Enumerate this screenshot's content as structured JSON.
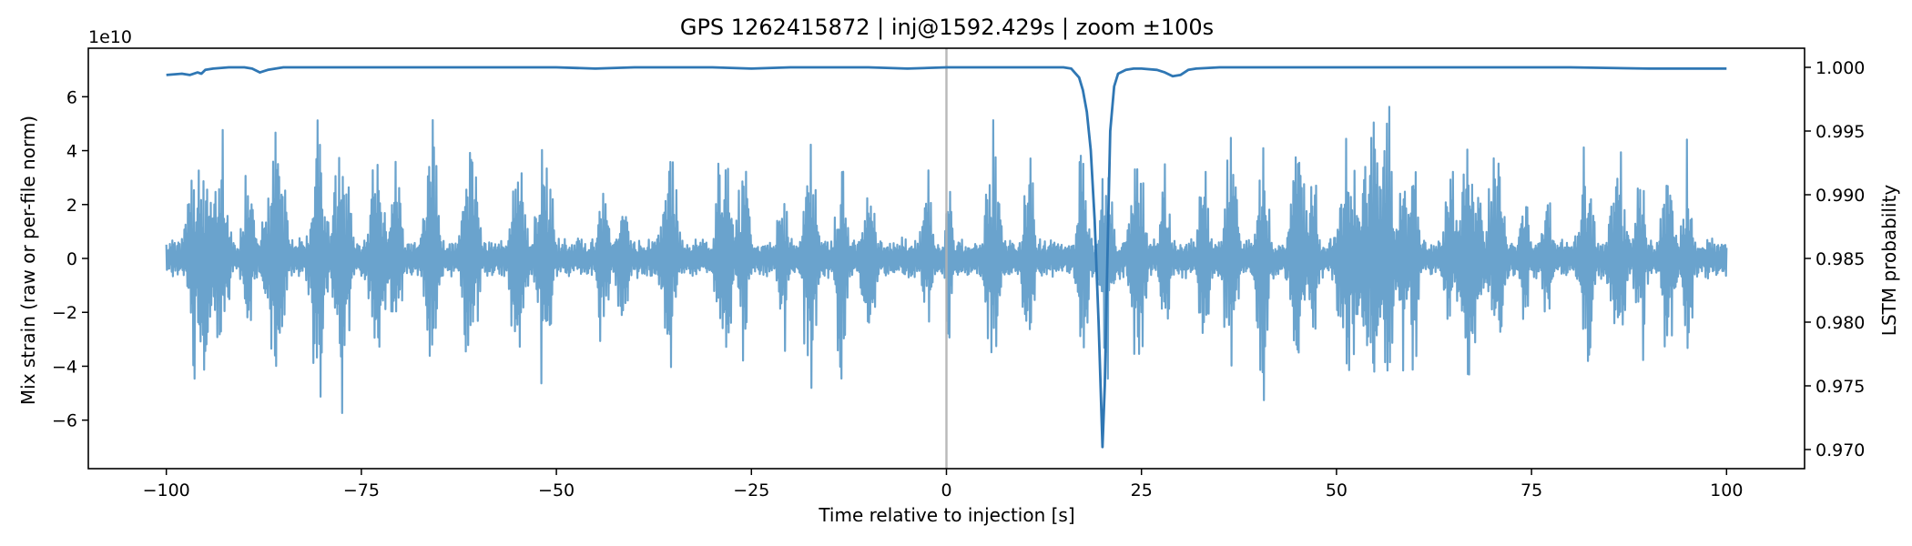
{
  "chart_data": {
    "type": "line",
    "title": "GPS 1262415872 | inj@1592.429s | zoom ±100s",
    "xlabel": "Time relative to injection [s]",
    "ylabel_left": "Mix strain (raw or per-file norm)",
    "ylabel_right": "LSTM probability",
    "left_axis_offset_label": "1e10",
    "xlim": [
      -110,
      110
    ],
    "ylim_left": [
      -7.8,
      7.8
    ],
    "ylim_right": [
      0.9685,
      1.0015
    ],
    "x_ticks": [
      -100,
      -75,
      -50,
      -25,
      0,
      25,
      50,
      75,
      100
    ],
    "x_tick_labels": [
      "−100",
      "−75",
      "−50",
      "−25",
      "0",
      "25",
      "50",
      "75",
      "100"
    ],
    "y_ticks_left": [
      -6,
      -4,
      -2,
      0,
      2,
      4,
      6
    ],
    "y_tick_labels_left": [
      "−6",
      "−4",
      "−2",
      "0",
      "2",
      "4",
      "6"
    ],
    "y_ticks_right": [
      0.97,
      0.975,
      0.98,
      0.985,
      0.99,
      0.995,
      1.0
    ],
    "y_tick_labels_right": [
      "0.970",
      "0.975",
      "0.980",
      "0.985",
      "0.990",
      "0.995",
      "1.000"
    ],
    "injection_marker_x": 0,
    "grid": false,
    "colors": {
      "strain": "#6aa3cd",
      "probability": "#2f77b4",
      "injection_line": "#b3b3b3",
      "axes": "#000000"
    },
    "series": [
      {
        "axis": "right",
        "x": [
          -100,
          -98,
          -97,
          -96,
          -95.5,
          -95,
          -94,
          -92,
          -90,
          -89,
          -88,
          -87,
          -86,
          -85,
          -80,
          -70,
          -60,
          -50,
          -45,
          -40,
          -30,
          -25,
          -20,
          -10,
          -5,
          0,
          5,
          10,
          15,
          16,
          17,
          17.5,
          18,
          18.5,
          19,
          19.5,
          20,
          20.3,
          20.7,
          21,
          21.5,
          22,
          23,
          24,
          25,
          27,
          28,
          29,
          30,
          31,
          32,
          35,
          40,
          45,
          50,
          60,
          70,
          80,
          90,
          95,
          100
        ],
        "values": [
          0.9994,
          0.9995,
          0.9994,
          0.9996,
          0.9995,
          0.9998,
          0.9999,
          1.0,
          1.0,
          0.9999,
          0.9996,
          0.9998,
          0.9999,
          1.0,
          1.0,
          1.0,
          1.0,
          1.0,
          0.9999,
          1.0,
          1.0,
          0.9999,
          1.0,
          1.0,
          0.9999,
          1.0,
          1.0,
          1.0,
          1.0,
          0.9999,
          0.9992,
          0.9982,
          0.9965,
          0.9935,
          0.988,
          0.98,
          0.9702,
          0.975,
          0.987,
          0.995,
          0.9985,
          0.9995,
          0.9998,
          0.9999,
          0.9999,
          0.9998,
          0.9996,
          0.9993,
          0.9994,
          0.9998,
          0.9999,
          1.0,
          1.0,
          1.0,
          1.0,
          1.0,
          1.0,
          1.0,
          0.9999,
          0.9999,
          0.9999
        ]
      },
      {
        "axis": "left",
        "x_range": [
          -100,
          100
        ],
        "baseline_abs": 0.8,
        "bursts": [
          {
            "center": -95.5,
            "width": 2.5,
            "peak": 6.2
          },
          {
            "center": -93,
            "width": 1.6,
            "peak": 5.8
          },
          {
            "center": -89.5,
            "width": 1.2,
            "peak": 4.3
          },
          {
            "center": -86,
            "width": 2.4,
            "peak": 5.4
          },
          {
            "center": -80.5,
            "width": 1.6,
            "peak": 6.4
          },
          {
            "center": -77.5,
            "width": 1.6,
            "peak": 6.1
          },
          {
            "center": -73,
            "width": 1.6,
            "peak": 5.8
          },
          {
            "center": -70.5,
            "width": 1.2,
            "peak": 4.6
          },
          {
            "center": -66,
            "width": 1.4,
            "peak": 6.5
          },
          {
            "center": -61,
            "width": 1.6,
            "peak": 5.6
          },
          {
            "center": -55,
            "width": 1.6,
            "peak": 5.2
          },
          {
            "center": -51.5,
            "width": 1.6,
            "peak": 6.0
          },
          {
            "center": -44,
            "width": 1.2,
            "peak": 4.0
          },
          {
            "center": -41.5,
            "width": 1.2,
            "peak": 4.0
          },
          {
            "center": -35.5,
            "width": 1.6,
            "peak": 5.2
          },
          {
            "center": -28.5,
            "width": 1.6,
            "peak": 5.6
          },
          {
            "center": -26,
            "width": 1.2,
            "peak": 5.0
          },
          {
            "center": -21,
            "width": 1.0,
            "peak": 4.8
          },
          {
            "center": -17.5,
            "width": 1.4,
            "peak": 5.8
          },
          {
            "center": -13.5,
            "width": 1.2,
            "peak": 5.4
          },
          {
            "center": -10,
            "width": 1.4,
            "peak": 4.6
          },
          {
            "center": -2.5,
            "width": 1.2,
            "peak": 4.0
          },
          {
            "center": 0.3,
            "width": 0.8,
            "peak": 4.2
          },
          {
            "center": 6,
            "width": 1.6,
            "peak": 5.6
          },
          {
            "center": 10.5,
            "width": 1.0,
            "peak": 6.5
          },
          {
            "center": 17.5,
            "width": 1.2,
            "peak": 5.4
          },
          {
            "center": 20.5,
            "width": 1.2,
            "peak": 5.0
          },
          {
            "center": 24.5,
            "width": 1.6,
            "peak": 5.0
          },
          {
            "center": 28,
            "width": 1.0,
            "peak": 4.4
          },
          {
            "center": 33,
            "width": 1.2,
            "peak": 4.4
          },
          {
            "center": 36.5,
            "width": 1.6,
            "peak": 5.4
          },
          {
            "center": 40.5,
            "width": 1.2,
            "peak": 6.7
          },
          {
            "center": 45,
            "width": 1.6,
            "peak": 5.8
          },
          {
            "center": 47,
            "width": 1.0,
            "peak": 4.4
          },
          {
            "center": 51.5,
            "width": 2.4,
            "peak": 5.6
          },
          {
            "center": 54.5,
            "width": 2.0,
            "peak": 6.6
          },
          {
            "center": 56.5,
            "width": 1.2,
            "peak": 7.0
          },
          {
            "center": 58.5,
            "width": 1.2,
            "peak": 4.8
          },
          {
            "center": 60,
            "width": 1.2,
            "peak": 4.6
          },
          {
            "center": 64.5,
            "width": 1.2,
            "peak": 4.2
          },
          {
            "center": 67,
            "width": 2.4,
            "peak": 5.4
          },
          {
            "center": 70.5,
            "width": 1.6,
            "peak": 5.8
          },
          {
            "center": 74,
            "width": 1.0,
            "peak": 4.0
          },
          {
            "center": 77,
            "width": 1.0,
            "peak": 4.0
          },
          {
            "center": 82,
            "width": 1.6,
            "peak": 5.0
          },
          {
            "center": 86,
            "width": 1.6,
            "peak": 5.6
          },
          {
            "center": 89,
            "width": 1.2,
            "peak": 4.4
          },
          {
            "center": 92.5,
            "width": 1.4,
            "peak": 5.0
          },
          {
            "center": 95,
            "width": 1.0,
            "peak": 5.4
          }
        ]
      }
    ]
  }
}
